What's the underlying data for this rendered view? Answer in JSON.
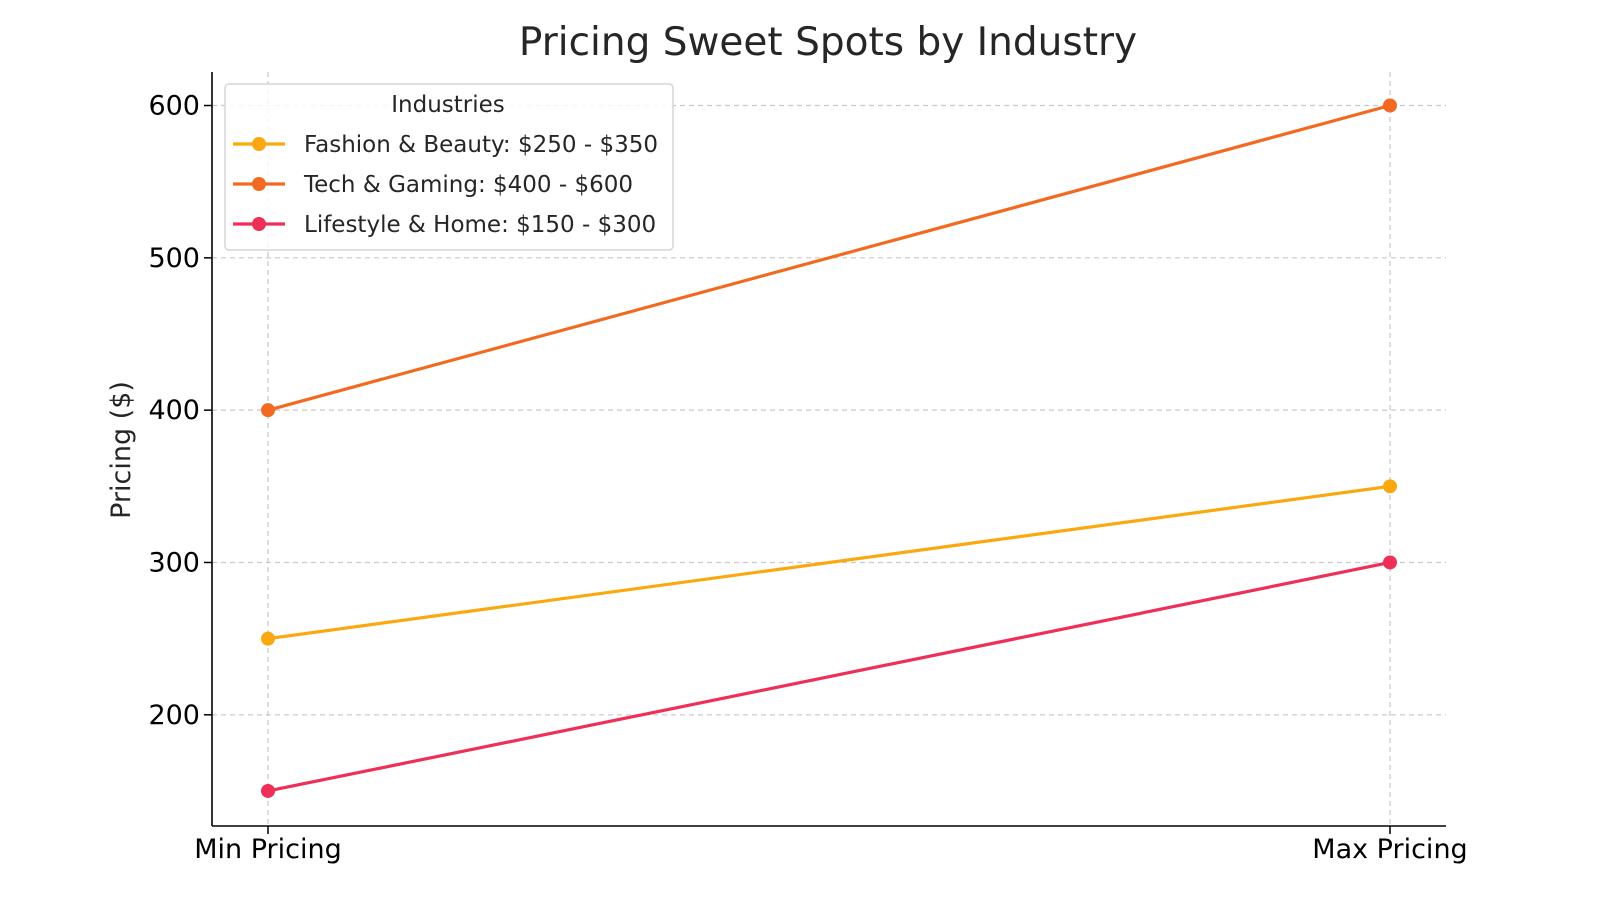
{
  "chart_data": {
    "type": "line",
    "title": "Pricing Sweet Spots by Industry",
    "xlabel": "",
    "ylabel": "Pricing ($)",
    "categories": [
      "Min Pricing",
      "Max Pricing"
    ],
    "ylim": [
      127,
      622
    ],
    "yticks": [
      200,
      300,
      400,
      500,
      600
    ],
    "grid": true,
    "legend": {
      "title": "Industries",
      "position": "top-left"
    },
    "series": [
      {
        "name": "Fashion & Beauty: $250 - $350",
        "values": [
          250,
          350
        ],
        "color": "#F9A90F"
      },
      {
        "name": "Tech & Gaming: $400 - $600",
        "values": [
          400,
          600
        ],
        "color": "#F26A22"
      },
      {
        "name": "Lifestyle & Home: $150 - $300",
        "values": [
          150,
          300
        ],
        "color": "#EE2F57"
      }
    ]
  }
}
